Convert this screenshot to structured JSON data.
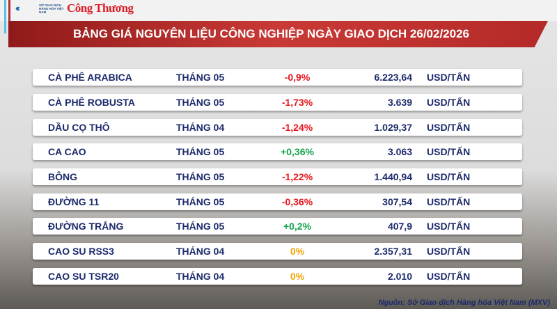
{
  "header": {
    "logo_exchange": "SỞ GIAO DỊCH HÀNG HÓA VIỆT NAM",
    "logo_newspaper": "Công Thương",
    "title": "BẢNG GIÁ NGUYÊN LIỆU CÔNG NGHIỆP NGÀY GIAO DỊCH 26/02/2026"
  },
  "colors": {
    "down": "#e8141b",
    "up": "#12a34a",
    "flat": "#f5a300",
    "text": "#1c2a6b",
    "banner": "#c93a36"
  },
  "rows": [
    {
      "name": "CÀ PHÊ ARABICA",
      "month": "THÁNG 05",
      "change": "-0,9%",
      "trend": "down",
      "price": "6.223,64",
      "unit": "USD/TẤN"
    },
    {
      "name": "CÀ PHÊ ROBUSTA",
      "month": "THÁNG 05",
      "change": "-1,73%",
      "trend": "down",
      "price": "3.639",
      "unit": "USD/TẤN"
    },
    {
      "name": "DẦU CỌ THÔ",
      "month": "THÁNG 04",
      "change": "-1,24%",
      "trend": "down",
      "price": "1.029,37",
      "unit": "USD/TẤN"
    },
    {
      "name": "CA CAO",
      "month": "THÁNG 05",
      "change": "+0,36%",
      "trend": "up",
      "price": "3.063",
      "unit": "USD/TẤN"
    },
    {
      "name": "BÔNG",
      "month": "THÁNG 05",
      "change": "-1,22%",
      "trend": "down",
      "price": "1.440,94",
      "unit": "USD/TẤN"
    },
    {
      "name": "ĐƯỜNG 11",
      "month": "THÁNG 05",
      "change": "-0,36%",
      "trend": "down",
      "price": "307,54",
      "unit": "USD/TẤN"
    },
    {
      "name": "ĐƯỜNG TRẮNG",
      "month": "THÁNG 05",
      "change": "+0,2%",
      "trend": "up",
      "price": "407,9",
      "unit": "USD/TẤN"
    },
    {
      "name": "CAO SU RSS3",
      "month": "THÁNG 04",
      "change": "0%",
      "trend": "flat",
      "price": "2.357,31",
      "unit": "USD/TẤN"
    },
    {
      "name": "CAO SU TSR20",
      "month": "THÁNG 04",
      "change": "0%",
      "trend": "flat",
      "price": "2.010",
      "unit": "USD/TẤN"
    }
  ],
  "footer": {
    "source": "Nguồn: Sở Giao dịch Hàng hóa Việt Nam (MXV)"
  }
}
